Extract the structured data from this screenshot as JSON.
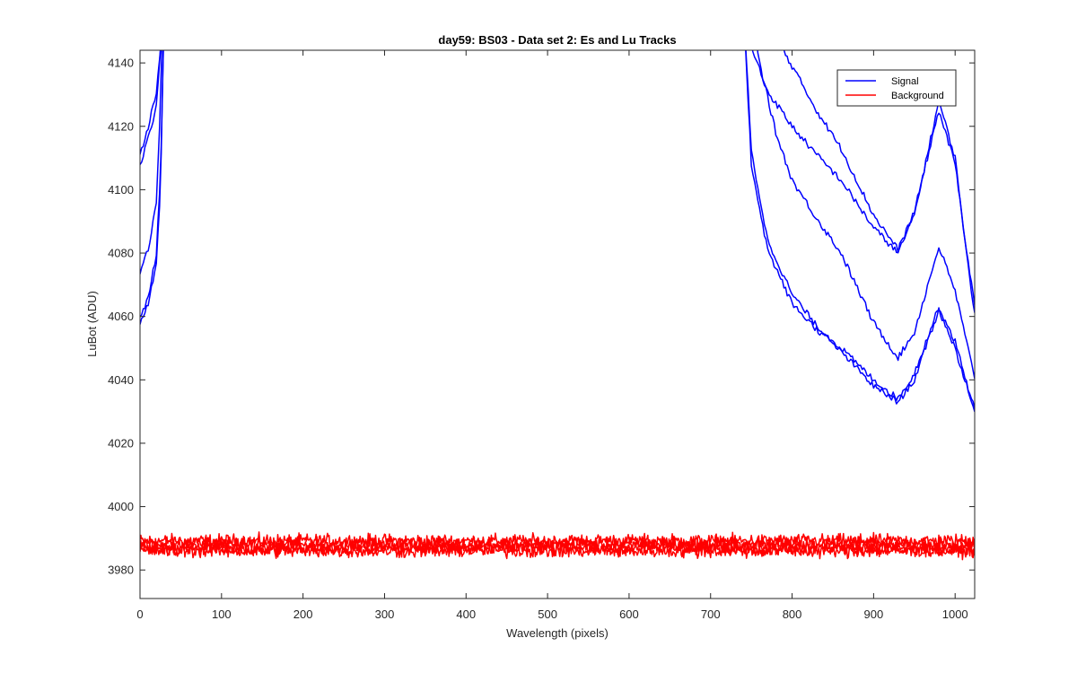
{
  "chart_data": {
    "type": "line",
    "title": "day59: BS03 - Data set 2: Es and Lu Tracks",
    "xlabel": "Wavelength (pixels)",
    "ylabel": "LuBot (ADU)",
    "xlim": [
      0,
      1024
    ],
    "ylim": [
      3971,
      4144
    ],
    "xticks": [
      0,
      100,
      200,
      300,
      400,
      500,
      600,
      700,
      800,
      900,
      1000
    ],
    "yticks": [
      3980,
      4000,
      4020,
      4040,
      4060,
      4080,
      4100,
      4120,
      4140
    ],
    "grid": false,
    "box": true,
    "legend": {
      "placement": "top-right",
      "entries": [
        "Signal",
        "Background"
      ]
    },
    "colors": {
      "Signal": "#0000ff",
      "Background": "#ff0000"
    },
    "series": [
      {
        "name": "Signal",
        "group": "Signal",
        "x": [
          0,
          10,
          20,
          25,
          30,
          740,
          750,
          770,
          800,
          830,
          860,
          900,
          930,
          950,
          980,
          1000,
          1020,
          1024
        ],
        "y": [
          4107,
          4116,
          4126,
          4145,
          4160,
          4160,
          4145,
          4131,
          4120,
          4111,
          4103,
          4088,
          4080,
          4092,
          4128,
          4110,
          4067,
          4062
        ]
      },
      {
        "name": "Signal",
        "group": "Signal",
        "x": [
          0,
          10,
          20,
          25,
          30,
          760,
          780,
          800,
          830,
          860,
          900,
          930,
          950,
          980,
          1000,
          1020,
          1024
        ],
        "y": [
          4111,
          4120,
          4130,
          4145,
          4160,
          4160,
          4148,
          4139,
          4125,
          4113,
          4092,
          4081,
          4093,
          4125,
          4108,
          4070,
          4064
        ]
      },
      {
        "name": "Signal",
        "group": "Signal",
        "x": [
          0,
          10,
          20,
          25,
          28,
          750,
          760,
          780,
          800,
          830,
          860,
          900,
          930,
          950,
          980,
          1000,
          1020,
          1024
        ],
        "y": [
          4074,
          4081,
          4096,
          4125,
          4160,
          4160,
          4140,
          4118,
          4103,
          4091,
          4080,
          4058,
          4047,
          4055,
          4082,
          4068,
          4045,
          4041
        ]
      },
      {
        "name": "Signal",
        "group": "Signal",
        "x": [
          0,
          10,
          20,
          25,
          30,
          740,
          750,
          770,
          800,
          830,
          860,
          900,
          930,
          950,
          980,
          1000,
          1020,
          1024
        ],
        "y": [
          4058,
          4064,
          4077,
          4100,
          4160,
          4160,
          4112,
          4084,
          4067,
          4057,
          4050,
          4040,
          4034,
          4042,
          4063,
          4052,
          4034,
          4031
        ]
      },
      {
        "name": "Signal",
        "group": "Signal",
        "x": [
          0,
          10,
          20,
          25,
          30,
          740,
          750,
          770,
          800,
          830,
          860,
          900,
          930,
          950,
          980,
          1000,
          1020,
          1024
        ],
        "y": [
          4059,
          4066,
          4080,
          4103,
          4160,
          4160,
          4108,
          4081,
          4064,
          4056,
          4049,
          4038,
          4033,
          4040,
          4062,
          4050,
          4033,
          4030
        ]
      },
      {
        "name": "Background",
        "group": "Background",
        "constant": 3989.2,
        "noise": 1.3
      },
      {
        "name": "Background",
        "group": "Background",
        "constant": 3988.0,
        "noise": 1.3
      },
      {
        "name": "Background",
        "group": "Background",
        "constant": 3987.0,
        "noise": 1.3
      },
      {
        "name": "Background",
        "group": "Background",
        "constant": 3986.0,
        "noise": 1.3
      }
    ]
  }
}
